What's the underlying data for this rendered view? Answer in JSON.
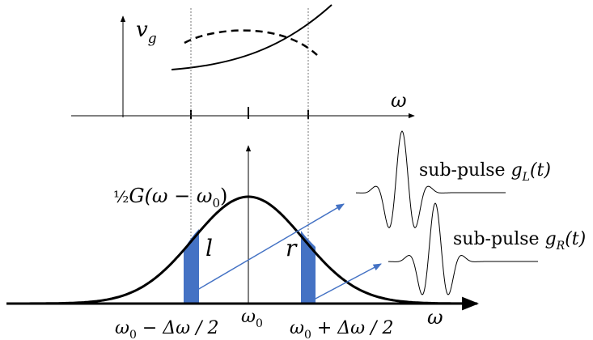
{
  "top_plot": {
    "y_axis_symbol": "v",
    "y_axis_subscript": "g",
    "x_axis_symbol": "ω"
  },
  "bottom_plot": {
    "curve_label": {
      "frac": "½",
      "text": "G(ω − ω",
      "sub": "0",
      "close": ")"
    },
    "x_axis_symbol": "ω",
    "left_band_label": "l",
    "right_band_label": "r",
    "center_tick": {
      "symbol": "ω",
      "sub": "0"
    },
    "left_tick": {
      "symbol": "ω",
      "sub": "0",
      "rest": " − Δω / 2"
    },
    "right_tick": {
      "symbol": "ω",
      "sub": "0",
      "rest": " + Δω / 2"
    }
  },
  "sub_pulses": [
    {
      "prefix": "sub-pulse ",
      "g": "g",
      "sub": "L",
      "arg": "(t)"
    },
    {
      "prefix": "sub-pulse ",
      "g": "g",
      "sub": "R",
      "arg": "(t)"
    }
  ],
  "colors": {
    "ink": "#000000",
    "band_fill": "#4472c4",
    "arrow": "#4472c4",
    "guide": "#555555"
  }
}
